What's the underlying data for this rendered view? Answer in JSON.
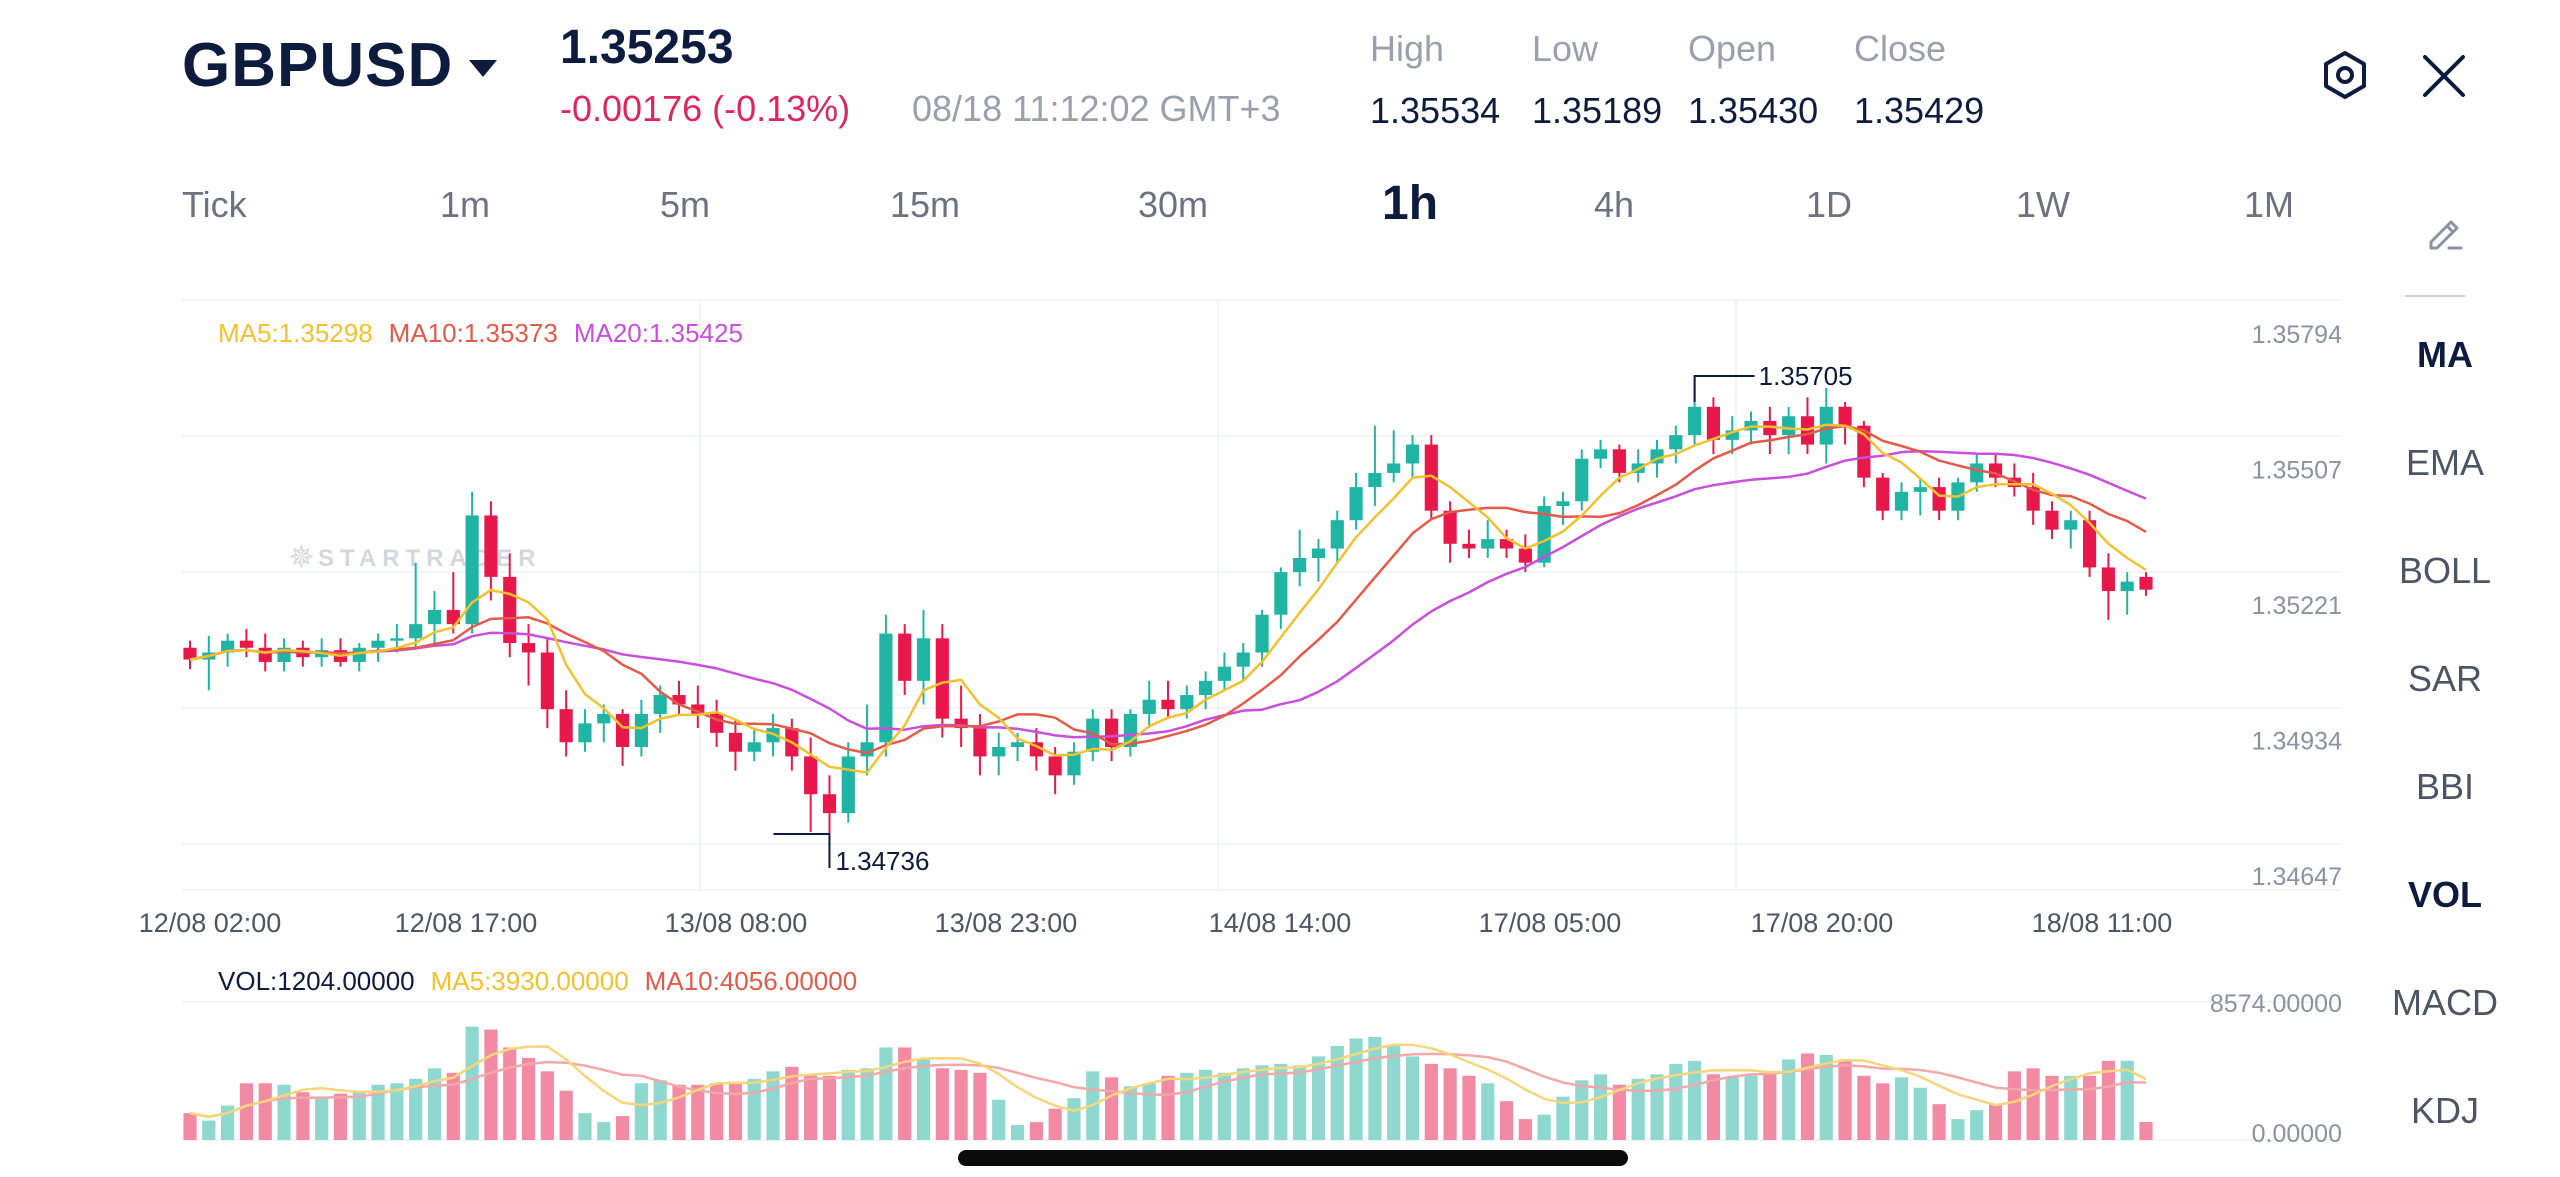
{
  "header": {
    "symbol": "GBPUSD",
    "price": "1.35253",
    "change": "-0.00176 (-0.13%)",
    "timestamp": "08/18 11:12:02 GMT+3",
    "ohlc": [
      {
        "label": "High",
        "value": "1.35534"
      },
      {
        "label": "Low",
        "value": "1.35189"
      },
      {
        "label": "Open",
        "value": "1.35430"
      },
      {
        "label": "Close",
        "value": "1.35429"
      }
    ],
    "settings_icon": "hexagon-settings-icon",
    "close_icon": "close-icon"
  },
  "timeframes": [
    "Tick",
    "1m",
    "5m",
    "15m",
    "30m",
    "1h",
    "4h",
    "1D",
    "1W",
    "1M"
  ],
  "active_timeframe": "1h",
  "indicators": {
    "draw_icon": "pencil-icon",
    "items": [
      "MA",
      "EMA",
      "BOLL",
      "SAR",
      "BBI",
      "VOL",
      "MACD",
      "KDJ"
    ],
    "active": [
      "MA",
      "VOL"
    ]
  },
  "legend": {
    "ma5": "MA5:1.35298",
    "ma10": "MA10:1.35373",
    "ma20": "MA20:1.35425"
  },
  "vol_legend": {
    "vol": "VOL:1204.00000",
    "ma5": "MA5:3930.00000",
    "ma10": "MA10:4056.00000"
  },
  "watermark": "STARTRADER",
  "colors": {
    "up": "#1fb4a4",
    "down": "#e8194a",
    "ma5": "#f2c12e",
    "ma10": "#e35a4a",
    "ma20": "#c84fdc",
    "vol_up": "#8ed8d0",
    "vol_down": "#f28aa4",
    "negative": "#e0245e"
  },
  "chart_data": [
    {
      "type": "candlestick",
      "title": "",
      "ylim": [
        1.34647,
        1.35794
      ],
      "y_ticks": [
        "1.35794",
        "1.35507",
        "1.35221",
        "1.34934",
        "1.34647"
      ],
      "x_ticks": [
        "12/08 02:00",
        "12/08 17:00",
        "13/08 08:00",
        "13/08 23:00",
        "14/08 14:00",
        "17/08 05:00",
        "17/08 20:00",
        "18/08 11:00"
      ],
      "annotations": [
        {
          "text": "1.35705",
          "type": "high"
        },
        {
          "text": "1.34736",
          "type": "low"
        }
      ],
      "ohlc": [
        [
          1.3513,
          1.35145,
          1.35085,
          1.35105
        ],
        [
          1.35105,
          1.35155,
          1.3504,
          1.3512
        ],
        [
          1.3512,
          1.3516,
          1.3509,
          1.35145
        ],
        [
          1.35145,
          1.3517,
          1.3511,
          1.3513
        ],
        [
          1.3513,
          1.3516,
          1.3508,
          1.351
        ],
        [
          1.351,
          1.3515,
          1.3508,
          1.3513
        ],
        [
          1.3513,
          1.35145,
          1.3509,
          1.3511
        ],
        [
          1.3511,
          1.3515,
          1.3509,
          1.35125
        ],
        [
          1.35125,
          1.3515,
          1.3509,
          1.351
        ],
        [
          1.351,
          1.3514,
          1.3508,
          1.3513
        ],
        [
          1.3513,
          1.3516,
          1.351,
          1.35145
        ],
        [
          1.35145,
          1.3518,
          1.3512,
          1.3515
        ],
        [
          1.3515,
          1.3531,
          1.3513,
          1.3518
        ],
        [
          1.3518,
          1.3525,
          1.3514,
          1.3521
        ],
        [
          1.3521,
          1.3529,
          1.3516,
          1.3518
        ],
        [
          1.3518,
          1.3546,
          1.3516,
          1.3541
        ],
        [
          1.3541,
          1.3544,
          1.3523,
          1.3528
        ],
        [
          1.3528,
          1.3533,
          1.3511,
          1.3514
        ],
        [
          1.3514,
          1.3518,
          1.3505,
          1.3512
        ],
        [
          1.3512,
          1.3515,
          1.3496,
          1.35
        ],
        [
          1.35,
          1.3504,
          1.349,
          1.3493
        ],
        [
          1.3493,
          1.35,
          1.3491,
          1.3497
        ],
        [
          1.3497,
          1.3501,
          1.3493,
          1.3499
        ],
        [
          1.3499,
          1.35,
          1.3488,
          1.3492
        ],
        [
          1.3492,
          1.3502,
          1.349,
          1.3499
        ],
        [
          1.3499,
          1.3505,
          1.3495,
          1.3503
        ],
        [
          1.3503,
          1.3506,
          1.3499,
          1.3501
        ],
        [
          1.3501,
          1.3505,
          1.3496,
          1.3499
        ],
        [
          1.3499,
          1.3502,
          1.3492,
          1.3495
        ],
        [
          1.3495,
          1.3498,
          1.3487,
          1.3491
        ],
        [
          1.3491,
          1.3496,
          1.3489,
          1.3493
        ],
        [
          1.3493,
          1.3499,
          1.349,
          1.3496
        ],
        [
          1.3496,
          1.3498,
          1.3487,
          1.349
        ],
        [
          1.349,
          1.3494,
          1.3474,
          1.3482
        ],
        [
          1.3482,
          1.3486,
          1.34736,
          1.3478
        ],
        [
          1.3478,
          1.3493,
          1.3476,
          1.349
        ],
        [
          1.349,
          1.3501,
          1.3486,
          1.3493
        ],
        [
          1.3493,
          1.352,
          1.349,
          1.3516
        ],
        [
          1.3516,
          1.3518,
          1.3503,
          1.3506
        ],
        [
          1.3506,
          1.3521,
          1.3501,
          1.3515
        ],
        [
          1.3515,
          1.3518,
          1.3494,
          1.3498
        ],
        [
          1.3498,
          1.3505,
          1.3492,
          1.3496
        ],
        [
          1.3496,
          1.3499,
          1.3486,
          1.349
        ],
        [
          1.349,
          1.3495,
          1.3486,
          1.3492
        ],
        [
          1.3492,
          1.3495,
          1.3489,
          1.3493
        ],
        [
          1.3493,
          1.3496,
          1.3487,
          1.349
        ],
        [
          1.349,
          1.3492,
          1.3482,
          1.3486
        ],
        [
          1.3486,
          1.3493,
          1.3484,
          1.3491
        ],
        [
          1.3491,
          1.35,
          1.3489,
          1.3498
        ],
        [
          1.3498,
          1.35,
          1.3489,
          1.3492
        ],
        [
          1.3492,
          1.35,
          1.349,
          1.3499
        ],
        [
          1.3499,
          1.3506,
          1.3496,
          1.3502
        ],
        [
          1.3502,
          1.3506,
          1.3498,
          1.35
        ],
        [
          1.35,
          1.3505,
          1.3498,
          1.3503
        ],
        [
          1.3503,
          1.3508,
          1.35,
          1.3506
        ],
        [
          1.3506,
          1.3512,
          1.3504,
          1.3509
        ],
        [
          1.3509,
          1.3514,
          1.3506,
          1.3512
        ],
        [
          1.3512,
          1.3521,
          1.3509,
          1.352
        ],
        [
          1.352,
          1.353,
          1.3517,
          1.3529
        ],
        [
          1.3529,
          1.3538,
          1.3526,
          1.3532
        ],
        [
          1.3532,
          1.3536,
          1.3527,
          1.3534
        ],
        [
          1.3534,
          1.3542,
          1.3531,
          1.354
        ],
        [
          1.354,
          1.355,
          1.3538,
          1.3547
        ],
        [
          1.3547,
          1.356,
          1.3543,
          1.355
        ],
        [
          1.355,
          1.3559,
          1.3548,
          1.3552
        ],
        [
          1.3552,
          1.3558,
          1.3549,
          1.3556
        ],
        [
          1.3556,
          1.3558,
          1.354,
          1.3542
        ],
        [
          1.3542,
          1.3544,
          1.3531,
          1.3535
        ],
        [
          1.3535,
          1.3538,
          1.3532,
          1.3534
        ],
        [
          1.3534,
          1.354,
          1.3532,
          1.3536
        ],
        [
          1.3536,
          1.3538,
          1.3532,
          1.3534
        ],
        [
          1.3534,
          1.3537,
          1.3529,
          1.3531
        ],
        [
          1.3531,
          1.3545,
          1.353,
          1.3543
        ],
        [
          1.3543,
          1.3546,
          1.3539,
          1.3544
        ],
        [
          1.3544,
          1.3555,
          1.3542,
          1.3553
        ],
        [
          1.3553,
          1.3557,
          1.3551,
          1.3555
        ],
        [
          1.3555,
          1.3556,
          1.3548,
          1.355
        ],
        [
          1.355,
          1.3555,
          1.3548,
          1.3552
        ],
        [
          1.3552,
          1.3557,
          1.3549,
          1.3555
        ],
        [
          1.3555,
          1.356,
          1.3552,
          1.3558
        ],
        [
          1.3558,
          1.35705,
          1.3556,
          1.3564
        ],
        [
          1.3564,
          1.3566,
          1.3554,
          1.3557
        ],
        [
          1.3557,
          1.3562,
          1.3554,
          1.3559
        ],
        [
          1.3559,
          1.3563,
          1.3556,
          1.3561
        ],
        [
          1.3561,
          1.3564,
          1.3554,
          1.3558
        ],
        [
          1.3558,
          1.3564,
          1.3554,
          1.3562
        ],
        [
          1.3562,
          1.3566,
          1.3554,
          1.3556
        ],
        [
          1.3556,
          1.3568,
          1.3552,
          1.3564
        ],
        [
          1.3564,
          1.3565,
          1.3556,
          1.356
        ],
        [
          1.356,
          1.3561,
          1.3547,
          1.3549
        ],
        [
          1.3549,
          1.355,
          1.354,
          1.3542
        ],
        [
          1.3542,
          1.3548,
          1.354,
          1.3546
        ],
        [
          1.3546,
          1.3549,
          1.3541,
          1.3547
        ],
        [
          1.3547,
          1.3549,
          1.354,
          1.3542
        ],
        [
          1.3542,
          1.3549,
          1.354,
          1.3548
        ],
        [
          1.3548,
          1.3554,
          1.3546,
          1.3552
        ],
        [
          1.3552,
          1.3554,
          1.3547,
          1.3549
        ],
        [
          1.3549,
          1.3552,
          1.3545,
          1.3547
        ],
        [
          1.3547,
          1.355,
          1.3539,
          1.3542
        ],
        [
          1.3542,
          1.3544,
          1.3536,
          1.3538
        ],
        [
          1.3538,
          1.3542,
          1.3534,
          1.354
        ],
        [
          1.354,
          1.3542,
          1.3528,
          1.353
        ],
        [
          1.353,
          1.3533,
          1.35189,
          1.3525
        ],
        [
          1.3525,
          1.3529,
          1.352,
          1.3527
        ],
        [
          1.3528,
          1.3529,
          1.3524,
          1.35253
        ]
      ]
    },
    {
      "type": "bar",
      "title": "",
      "ylim": [
        0,
        8574
      ],
      "y_ticks": [
        "8574.00000",
        "0.00000"
      ],
      "values": [
        1800,
        1300,
        2300,
        3800,
        3800,
        3700,
        3200,
        2800,
        3100,
        3300,
        3700,
        3800,
        4100,
        4800,
        4500,
        7600,
        7400,
        6200,
        5500,
        4600,
        3300,
        1800,
        1200,
        1600,
        3800,
        4000,
        3700,
        3700,
        3800,
        3900,
        4100,
        4600,
        4900,
        4400,
        4300,
        4700,
        4800,
        6200,
        6200,
        5400,
        4800,
        4700,
        4500,
        2700,
        1000,
        1200,
        2100,
        2800,
        4600,
        4200,
        3600,
        3800,
        4300,
        4500,
        4700,
        4500,
        4800,
        5000,
        5100,
        5000,
        5600,
        6300,
        6800,
        6900,
        6300,
        5600,
        5100,
        4800,
        4300,
        3800,
        2600,
        1400,
        1700,
        2900,
        4000,
        4400,
        3700,
        4100,
        4400,
        5100,
        5300,
        4400,
        4200,
        4300,
        4500,
        5400,
        5800,
        5700,
        5400,
        4300,
        3800,
        4200,
        3500,
        2400,
        1400,
        2000,
        2400,
        4600,
        4800,
        4300,
        4300,
        4300,
        5300,
        5300,
        1204
      ]
    }
  ]
}
